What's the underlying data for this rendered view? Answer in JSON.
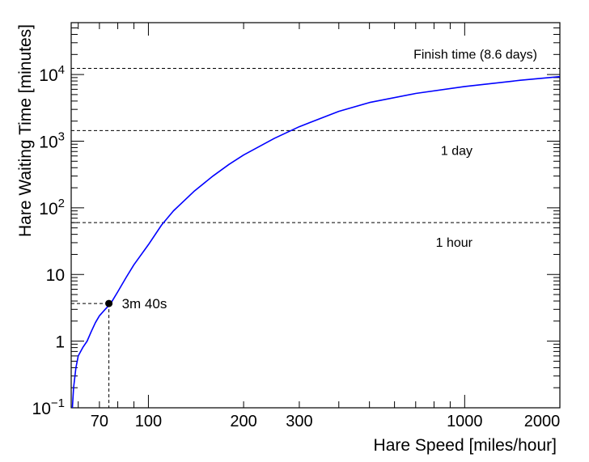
{
  "chart_data": {
    "type": "line",
    "title": "",
    "xlabel": "Hare Speed [miles/hour]",
    "ylabel": "Hare Waiting Time [minutes]",
    "x_scale": "log",
    "y_scale": "log",
    "xlim": [
      57,
      2000
    ],
    "ylim": [
      0.1,
      60000
    ],
    "grid": false,
    "x_ticks": [
      {
        "value": 70,
        "label": "70"
      },
      {
        "value": 100,
        "label": "100"
      },
      {
        "value": 200,
        "label": "200"
      },
      {
        "value": 300,
        "label": "300"
      },
      {
        "value": 1000,
        "label": "1000"
      },
      {
        "value": 2000,
        "label": "2000"
      }
    ],
    "y_ticks": [
      {
        "value": 0.1,
        "base": "10",
        "exp": "−1"
      },
      {
        "value": 1,
        "base": "1",
        "exp": ""
      },
      {
        "value": 10,
        "base": "10",
        "exp": ""
      },
      {
        "value": 100,
        "base": "10",
        "exp": "2"
      },
      {
        "value": 1000,
        "base": "10",
        "exp": "3"
      },
      {
        "value": 10000,
        "base": "10",
        "exp": "4"
      }
    ],
    "series": [
      {
        "color": "#0000ff",
        "x": [
          57.5,
          58,
          59,
          60,
          62,
          64,
          66,
          68,
          70,
          73,
          76,
          80,
          85,
          90,
          100,
          110,
          120,
          140,
          160,
          180,
          200,
          250,
          300,
          400,
          500,
          700,
          1000,
          1500,
          2000
        ],
        "y": [
          0.1,
          0.2,
          0.4,
          0.6,
          0.8,
          1.0,
          1.4,
          1.9,
          2.4,
          3.0,
          3.67,
          5.5,
          9.0,
          14,
          28,
          55,
          90,
          180,
          300,
          450,
          620,
          1100,
          1650,
          2800,
          3800,
          5200,
          6600,
          8200,
          9300
        ]
      }
    ],
    "reference_lines": [
      {
        "y": 12384,
        "label": "Finish time (8.6 days)"
      },
      {
        "y": 1440,
        "label": "1 day"
      },
      {
        "y": 60,
        "label": "1 hour"
      }
    ],
    "marker": {
      "x": 75,
      "y": 3.67,
      "label": "3m 40s"
    }
  }
}
